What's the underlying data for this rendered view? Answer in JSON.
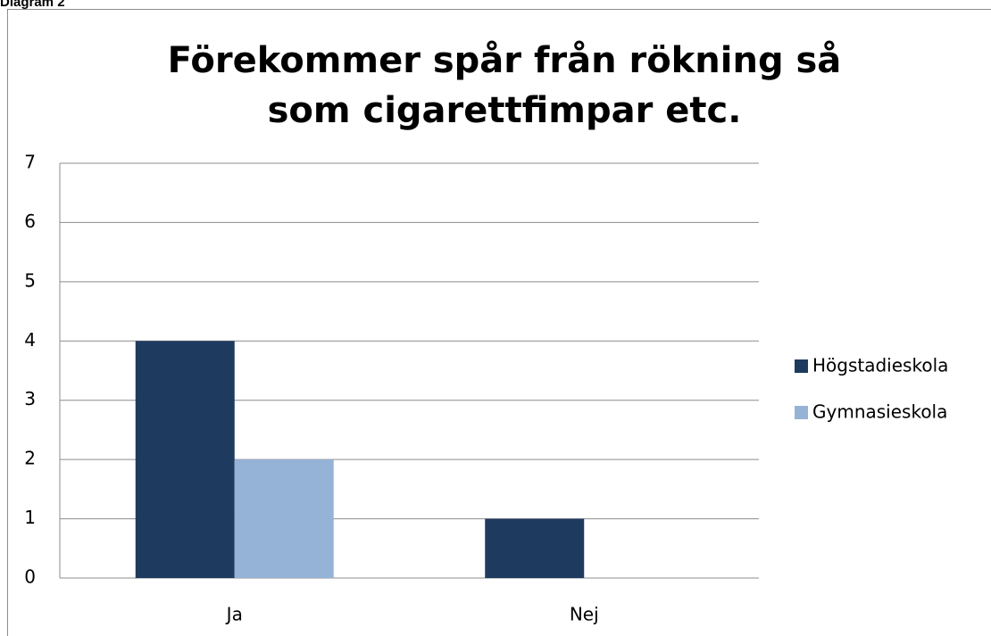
{
  "caption": "Diagram 2",
  "chart_data": {
    "type": "bar",
    "title": "Förekommer spår från rökning så som cigarettfimpar etc.",
    "categories": [
      "Ja",
      "Nej"
    ],
    "series": [
      {
        "name": "Högstadieskola",
        "color": "#1f3a5f",
        "values": [
          4,
          1
        ]
      },
      {
        "name": "Gymnasieskola",
        "color": "#95b3d7",
        "values": [
          2,
          0
        ]
      }
    ],
    "ylim": [
      0,
      7
    ],
    "yticks": [
      0,
      1,
      2,
      3,
      4,
      5,
      6,
      7
    ],
    "grid": true,
    "legend": "right"
  }
}
